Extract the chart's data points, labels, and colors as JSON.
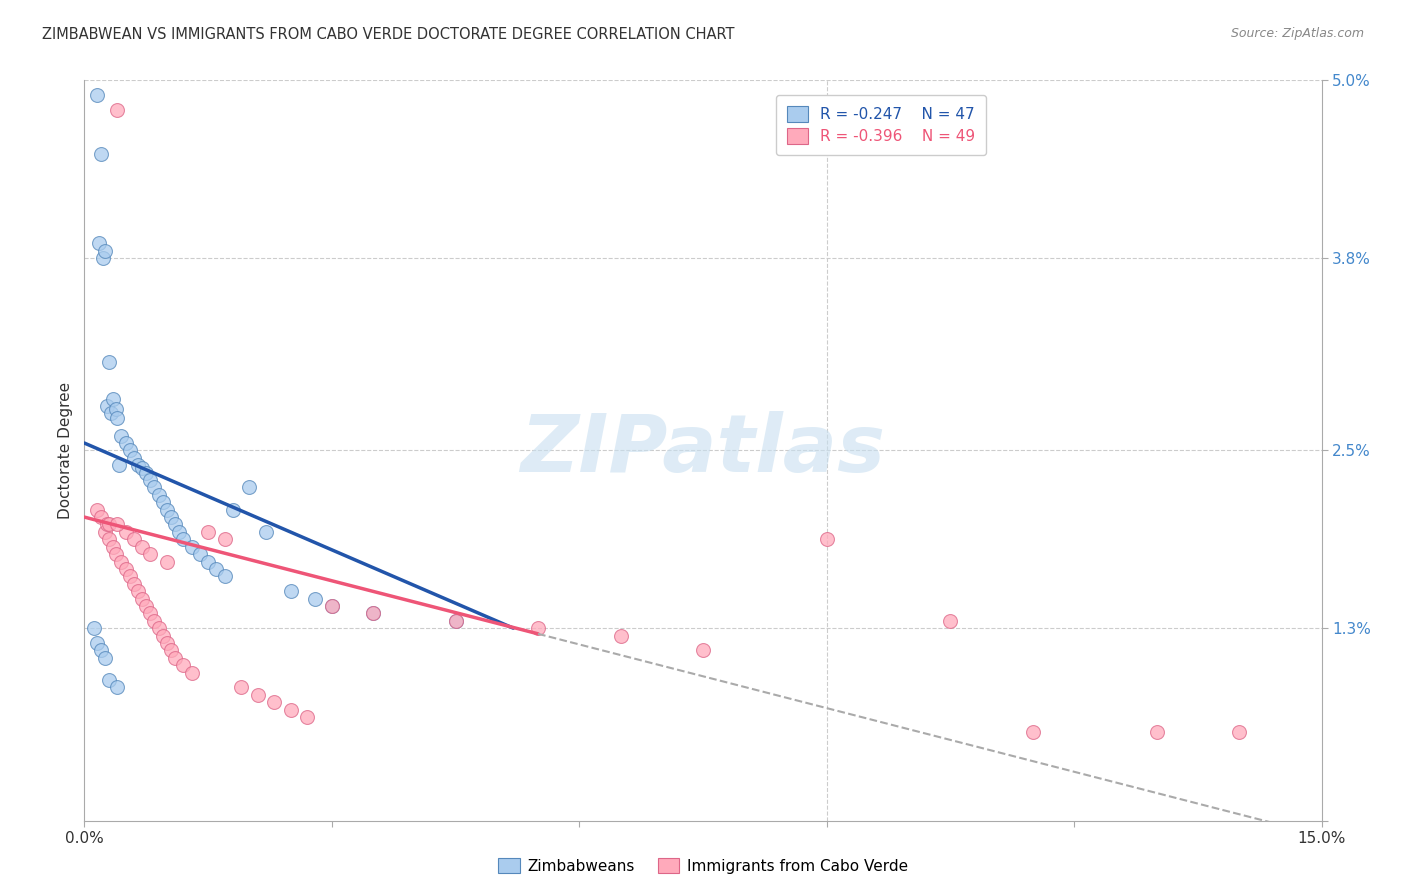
{
  "title": "ZIMBABWEAN VS IMMIGRANTS FROM CABO VERDE DOCTORATE DEGREE CORRELATION CHART",
  "source": "Source: ZipAtlas.com",
  "ylabel": "Doctorate Degree",
  "xlim": [
    0.0,
    15.0
  ],
  "ylim": [
    0.0,
    5.0
  ],
  "xtick_positions": [
    0,
    3,
    6,
    9,
    12,
    15
  ],
  "xtick_labels": [
    "0.0%",
    "",
    "",
    "",
    "",
    "15.0%"
  ],
  "ytick_positions": [
    0.0,
    1.3,
    2.5,
    3.8,
    5.0
  ],
  "ytick_labels_right": [
    "",
    "1.3%",
    "2.5%",
    "3.8%",
    "5.0%"
  ],
  "blue_color": "#aaccee",
  "pink_color": "#ffaabb",
  "blue_edge_color": "#5588bb",
  "pink_edge_color": "#dd6688",
  "blue_line_color": "#2255aa",
  "pink_line_color": "#ee5577",
  "grid_color": "#cccccc",
  "background_color": "#ffffff",
  "watermark": "ZIPatlas",
  "blue_line_x0": 0.0,
  "blue_line_y0": 2.55,
  "blue_line_x1": 5.2,
  "blue_line_y1": 1.3,
  "pink_line_x0": 0.0,
  "pink_line_y0": 2.05,
  "pink_line_x1": 15.0,
  "pink_line_y1": -0.1,
  "pink_solid_end": 5.5,
  "pink_dash_start": 5.5,
  "blue_x": [
    0.15,
    0.18,
    0.2,
    0.22,
    0.25,
    0.28,
    0.3,
    0.32,
    0.35,
    0.38,
    0.4,
    0.42,
    0.45,
    0.5,
    0.55,
    0.6,
    0.65,
    0.7,
    0.75,
    0.8,
    0.85,
    0.9,
    0.95,
    1.0,
    1.05,
    1.1,
    1.15,
    1.2,
    1.3,
    1.4,
    1.5,
    1.6,
    1.7,
    1.8,
    2.0,
    2.2,
    2.5,
    2.8,
    3.0,
    3.5,
    4.5,
    0.12,
    0.15,
    0.2,
    0.25,
    0.3,
    0.4
  ],
  "blue_y": [
    4.9,
    3.9,
    4.5,
    3.8,
    3.85,
    2.8,
    3.1,
    2.75,
    2.85,
    2.78,
    2.72,
    2.4,
    2.6,
    2.55,
    2.5,
    2.45,
    2.4,
    2.38,
    2.35,
    2.3,
    2.25,
    2.2,
    2.15,
    2.1,
    2.05,
    2.0,
    1.95,
    1.9,
    1.85,
    1.8,
    1.75,
    1.7,
    1.65,
    2.1,
    2.25,
    1.95,
    1.55,
    1.5,
    1.45,
    1.4,
    1.35,
    1.3,
    1.2,
    1.15,
    1.1,
    0.95,
    0.9
  ],
  "pink_x": [
    0.15,
    0.2,
    0.25,
    0.28,
    0.3,
    0.35,
    0.38,
    0.4,
    0.45,
    0.5,
    0.55,
    0.6,
    0.65,
    0.7,
    0.75,
    0.8,
    0.85,
    0.9,
    0.95,
    1.0,
    1.05,
    1.1,
    1.2,
    1.3,
    1.5,
    1.7,
    1.9,
    2.1,
    2.3,
    2.5,
    2.7,
    3.0,
    3.5,
    4.5,
    5.5,
    6.5,
    7.5,
    9.0,
    10.5,
    11.5,
    13.0,
    14.0,
    0.3,
    0.5,
    0.6,
    0.7,
    0.8,
    1.0,
    0.4
  ],
  "pink_y": [
    2.1,
    2.05,
    1.95,
    2.0,
    1.9,
    1.85,
    1.8,
    4.8,
    1.75,
    1.7,
    1.65,
    1.6,
    1.55,
    1.5,
    1.45,
    1.4,
    1.35,
    1.3,
    1.25,
    1.2,
    1.15,
    1.1,
    1.05,
    1.0,
    1.95,
    1.9,
    0.9,
    0.85,
    0.8,
    0.75,
    0.7,
    1.45,
    1.4,
    1.35,
    1.3,
    1.25,
    1.15,
    1.9,
    1.35,
    0.6,
    0.6,
    0.6,
    2.0,
    1.95,
    1.9,
    1.85,
    1.8,
    1.75,
    2.0
  ]
}
